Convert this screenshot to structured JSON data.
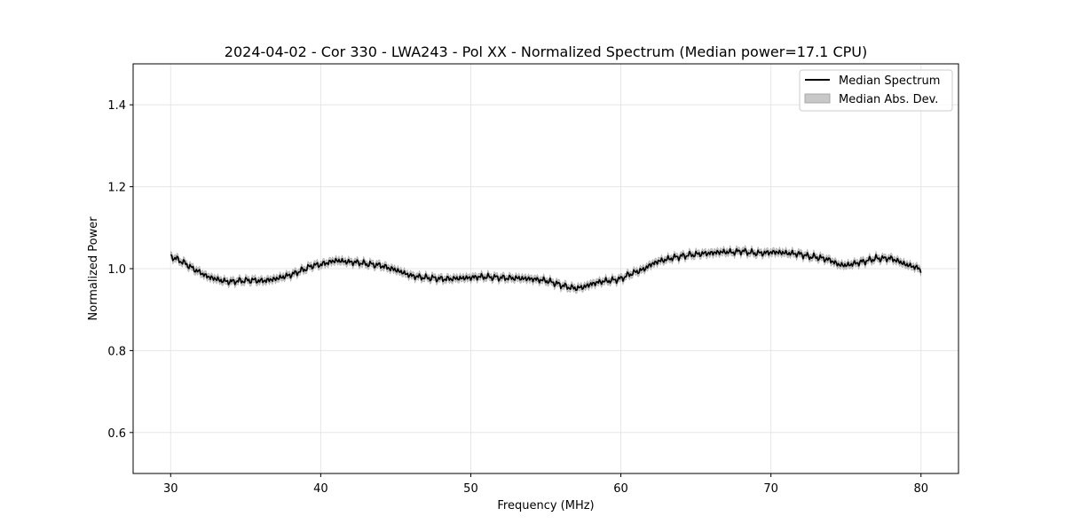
{
  "chart_data": {
    "type": "line",
    "title": "2024-04-02 - Cor 330 - LWA243 - Pol XX - Normalized Spectrum (Median power=17.1 CPU)",
    "xlabel": "Frequency (MHz)",
    "ylabel": "Normalized Power",
    "xlim": [
      27.5,
      82.5
    ],
    "ylim": [
      0.5,
      1.5
    ],
    "xticks": [
      30,
      40,
      50,
      60,
      70,
      80
    ],
    "yticks": [
      0.6,
      0.8,
      1.0,
      1.2,
      1.4
    ],
    "xtick_labels": [
      "30",
      "40",
      "50",
      "60",
      "70",
      "80"
    ],
    "ytick_labels": [
      "0.6",
      "0.8",
      "1.0",
      "1.2",
      "1.4"
    ],
    "grid": true,
    "legend": {
      "position": "top-right",
      "entries": [
        "Median Spectrum",
        "Median Abs. Dev."
      ]
    },
    "series": [
      {
        "name": "Median Spectrum",
        "color": "#000000",
        "x": [
          30,
          30.5,
          31,
          31.5,
          32,
          32.5,
          33,
          33.5,
          34,
          34.5,
          35,
          35.5,
          36,
          36.5,
          37,
          37.5,
          38,
          38.5,
          39,
          39.5,
          40,
          40.5,
          41,
          41.5,
          42,
          42.5,
          43,
          43.5,
          44,
          44.5,
          45,
          45.5,
          46,
          46.5,
          47,
          47.5,
          48,
          48.5,
          49,
          49.5,
          50,
          50.5,
          51,
          51.5,
          52,
          52.5,
          53,
          53.5,
          54,
          54.5,
          55,
          55.5,
          56,
          56.5,
          57,
          57.5,
          58,
          58.5,
          59,
          59.5,
          60,
          60.5,
          61,
          61.5,
          62,
          62.5,
          63,
          63.5,
          64,
          64.5,
          65,
          65.5,
          66,
          66.5,
          67,
          67.5,
          68,
          68.5,
          69,
          69.5,
          70,
          70.5,
          71,
          71.5,
          72,
          72.5,
          73,
          73.5,
          74,
          74.5,
          75,
          75.5,
          76,
          76.5,
          77,
          77.5,
          78,
          78.5,
          79,
          79.5,
          80
        ],
        "y": [
          1.03,
          1.022,
          1.012,
          1.0,
          0.99,
          0.98,
          0.975,
          0.97,
          0.968,
          0.97,
          0.971,
          0.972,
          0.97,
          0.972,
          0.975,
          0.98,
          0.985,
          0.992,
          1.0,
          1.008,
          1.01,
          1.015,
          1.02,
          1.018,
          1.016,
          1.015,
          1.012,
          1.01,
          1.008,
          1.002,
          0.997,
          0.99,
          0.983,
          0.98,
          0.978,
          0.977,
          0.975,
          0.975,
          0.976,
          0.977,
          0.978,
          0.98,
          0.98,
          0.979,
          0.978,
          0.977,
          0.977,
          0.976,
          0.975,
          0.973,
          0.971,
          0.966,
          0.96,
          0.955,
          0.952,
          0.955,
          0.962,
          0.967,
          0.97,
          0.972,
          0.975,
          0.985,
          0.992,
          0.998,
          1.01,
          1.018,
          1.022,
          1.027,
          1.03,
          1.033,
          1.035,
          1.037,
          1.038,
          1.04,
          1.041,
          1.04,
          1.043,
          1.04,
          1.038,
          1.038,
          1.04,
          1.04,
          1.038,
          1.037,
          1.035,
          1.03,
          1.028,
          1.025,
          1.02,
          1.01,
          1.008,
          1.012,
          1.016,
          1.02,
          1.025,
          1.025,
          1.025,
          1.018,
          1.01,
          1.005,
          0.998
        ]
      },
      {
        "name": "Median Abs. Dev.",
        "color": "#c8c8c8",
        "band_halfwidth": 0.008
      }
    ]
  }
}
